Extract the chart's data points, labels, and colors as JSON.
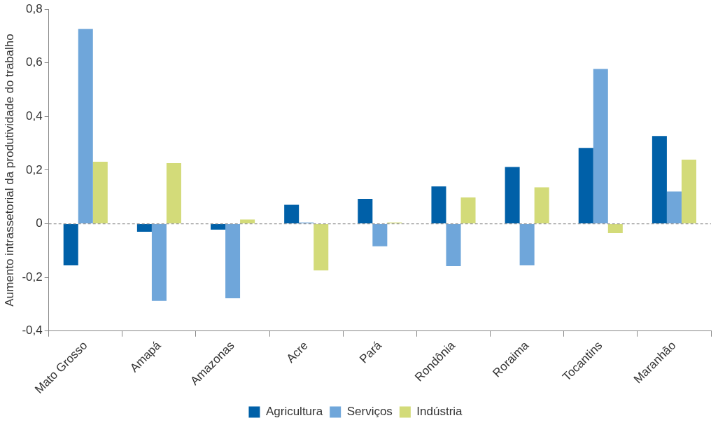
{
  "chart_data": {
    "type": "bar",
    "ylabel": "Aumento intrassetorial da produtividade do trabalho",
    "categories": [
      "Mato Grosso",
      "Amapá",
      "Amazonas",
      "Acre",
      "Pará",
      "Rondônia",
      "Roraima",
      "Tocantins",
      "Maranhão"
    ],
    "series": [
      {
        "name": "Agricultura",
        "color": "#0060a8",
        "values": [
          -0.155,
          -0.03,
          -0.022,
          0.071,
          0.093,
          0.139,
          0.212,
          0.283,
          0.327
        ]
      },
      {
        "name": "Serviços",
        "color": "#6fa6da",
        "values": [
          0.727,
          -0.288,
          -0.278,
          0.005,
          -0.084,
          -0.158,
          -0.155,
          0.577,
          0.12
        ]
      },
      {
        "name": "Indústria",
        "color": "#d3db79",
        "values": [
          0.231,
          0.226,
          0.016,
          -0.174,
          0.005,
          0.098,
          0.136,
          -0.035,
          0.239
        ]
      }
    ],
    "ylim": [
      -0.4,
      0.8
    ],
    "yticks": [
      {
        "value": -0.4,
        "label": "-0,4"
      },
      {
        "value": -0.2,
        "label": "-0,2"
      },
      {
        "value": 0,
        "label": "0"
      },
      {
        "value": 0.2,
        "label": "0,2"
      },
      {
        "value": 0.4,
        "label": "0,4"
      },
      {
        "value": 0.6,
        "label": "0,6"
      },
      {
        "value": 0.8,
        "label": "0,8"
      }
    ],
    "ref_lines": [
      {
        "axis": "y",
        "value": 0,
        "color": "#9a9a9a",
        "line_style": "dashed"
      }
    ],
    "grid": false,
    "legend": "bottom"
  }
}
